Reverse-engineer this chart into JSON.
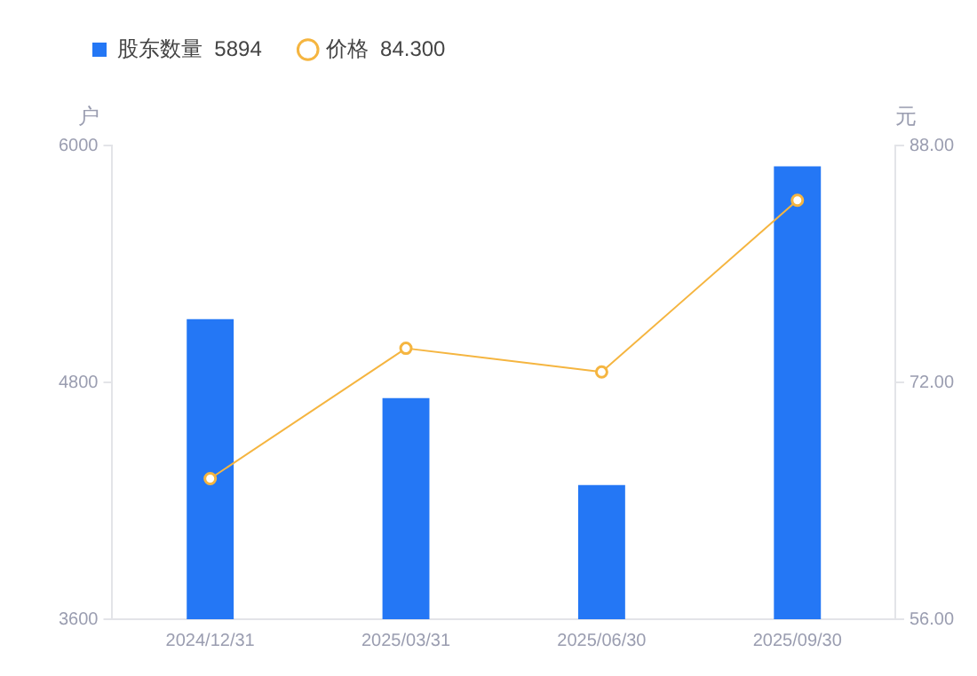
{
  "chart_data": {
    "type": "bar",
    "categories": [
      "2024/12/31",
      "2025/03/31",
      "2025/06/30",
      "2025/09/30"
    ],
    "series": [
      {
        "name": "股东数量  5894",
        "color": "#2477f5",
        "values": [
          5120,
          4720,
          4280,
          5894
        ]
      },
      {
        "name": "价格  84.300",
        "type": "line",
        "axis": "y2",
        "color": "#f5b540",
        "values": [
          65.5,
          74.3,
          72.7,
          84.3
        ]
      }
    ],
    "ylabel": "户",
    "y2label": "元",
    "ylim": [
      3600,
      6000
    ],
    "yticks": [
      3600,
      4800,
      6000
    ],
    "y2lim": [
      56,
      88
    ],
    "y2ticks": [
      {
        "value": 56,
        "label": "56.00"
      },
      {
        "value": 72,
        "label": "72.00"
      },
      {
        "value": 88,
        "label": "88.00"
      }
    ],
    "grid": false,
    "legend": "top left",
    "marker": "circle"
  }
}
